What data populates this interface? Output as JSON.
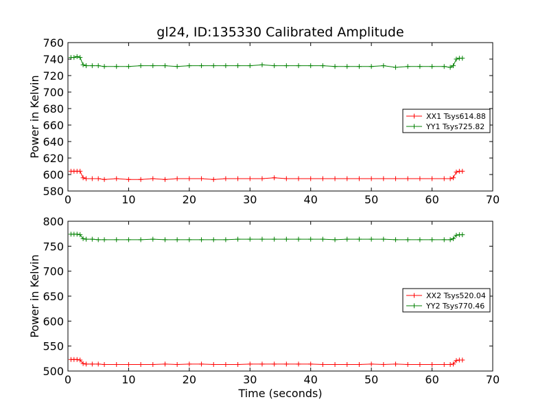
{
  "chart_data": [
    {
      "type": "line",
      "title": "gl24, ID:135330 Calibrated Amplitude",
      "xlabel": "",
      "ylabel": "Power in Kelvin",
      "xlim": [
        0,
        70
      ],
      "ylim": [
        580,
        760
      ],
      "xticks": [
        "0",
        "10",
        "20",
        "30",
        "40",
        "50",
        "60",
        "70"
      ],
      "yticks": [
        "580",
        "600",
        "620",
        "640",
        "660",
        "680",
        "700",
        "720",
        "740",
        "760"
      ],
      "legend_position": "center-right",
      "grid": false,
      "marker": "plus",
      "series": [
        {
          "name": "XX1 Tsys614.88",
          "color": "#ff0000",
          "x": [
            0.5,
            1.0,
            1.5,
            2.0,
            2.5,
            3.0,
            4.0,
            5.0,
            6.0,
            8.0,
            10.0,
            12.0,
            14.0,
            16.0,
            18.0,
            20.0,
            22.0,
            24.0,
            26.0,
            28.0,
            30.0,
            32.0,
            34.0,
            36.0,
            38.0,
            40.0,
            42.0,
            44.0,
            46.0,
            48.0,
            50.0,
            52.0,
            54.0,
            56.0,
            58.0,
            60.0,
            62.0,
            63.0,
            63.5,
            64.0,
            64.5,
            65.0
          ],
          "y": [
            604,
            604,
            604,
            604,
            596,
            595,
            595,
            595,
            594,
            595,
            594,
            594,
            595,
            594,
            595,
            595,
            595,
            594,
            595,
            595,
            595,
            595,
            596,
            595,
            595,
            595,
            595,
            595,
            595,
            595,
            595,
            595,
            595,
            595,
            595,
            595,
            595,
            595,
            596,
            603,
            604,
            604
          ]
        },
        {
          "name": "YY1 Tsys725.82",
          "color": "#008000",
          "x": [
            0.5,
            1.0,
            1.5,
            2.0,
            2.5,
            3.0,
            4.0,
            5.0,
            6.0,
            8.0,
            10.0,
            12.0,
            14.0,
            16.0,
            18.0,
            20.0,
            22.0,
            24.0,
            26.0,
            28.0,
            30.0,
            32.0,
            34.0,
            36.0,
            38.0,
            40.0,
            42.0,
            44.0,
            46.0,
            48.0,
            50.0,
            52.0,
            54.0,
            56.0,
            58.0,
            60.0,
            62.0,
            63.0,
            63.5,
            64.0,
            64.5,
            65.0
          ],
          "y": [
            742,
            742,
            743,
            742,
            733,
            732,
            732,
            732,
            731,
            731,
            731,
            732,
            732,
            732,
            731,
            732,
            732,
            732,
            732,
            732,
            732,
            733,
            732,
            732,
            732,
            732,
            732,
            731,
            731,
            731,
            731,
            732,
            730,
            731,
            731,
            731,
            731,
            730,
            732,
            740,
            741,
            741
          ]
        }
      ]
    },
    {
      "type": "line",
      "title": "",
      "xlabel": "Time (seconds)",
      "ylabel": "Power in Kelvin",
      "xlim": [
        0,
        70
      ],
      "ylim": [
        500,
        800
      ],
      "xticks": [
        "0",
        "10",
        "20",
        "30",
        "40",
        "50",
        "60",
        "70"
      ],
      "yticks": [
        "500",
        "550",
        "600",
        "650",
        "700",
        "750",
        "800"
      ],
      "legend_position": "center-right",
      "grid": false,
      "marker": "plus",
      "series": [
        {
          "name": "XX2 Tsys520.04",
          "color": "#ff0000",
          "x": [
            0.5,
            1.0,
            1.5,
            2.0,
            2.5,
            3.0,
            4.0,
            5.0,
            6.0,
            8.0,
            10.0,
            12.0,
            14.0,
            16.0,
            18.0,
            20.0,
            22.0,
            24.0,
            26.0,
            28.0,
            30.0,
            32.0,
            34.0,
            36.0,
            38.0,
            40.0,
            42.0,
            44.0,
            46.0,
            48.0,
            50.0,
            52.0,
            54.0,
            56.0,
            58.0,
            60.0,
            62.0,
            63.0,
            63.5,
            64.0,
            64.5,
            65.0
          ],
          "y": [
            523,
            523,
            523,
            522,
            515,
            514,
            514,
            514,
            513,
            513,
            513,
            513,
            513,
            514,
            513,
            514,
            514,
            513,
            513,
            513,
            514,
            514,
            514,
            514,
            514,
            514,
            513,
            513,
            513,
            513,
            514,
            513,
            514,
            513,
            513,
            513,
            513,
            513,
            514,
            521,
            522,
            522
          ]
        },
        {
          "name": "YY2 Tsys770.46",
          "color": "#008000",
          "x": [
            0.5,
            1.0,
            1.5,
            2.0,
            2.5,
            3.0,
            4.0,
            5.0,
            6.0,
            8.0,
            10.0,
            12.0,
            14.0,
            16.0,
            18.0,
            20.0,
            22.0,
            24.0,
            26.0,
            28.0,
            30.0,
            32.0,
            34.0,
            36.0,
            38.0,
            40.0,
            42.0,
            44.0,
            46.0,
            48.0,
            50.0,
            52.0,
            54.0,
            56.0,
            58.0,
            60.0,
            62.0,
            63.0,
            63.5,
            64.0,
            64.5,
            65.0
          ],
          "y": [
            774,
            774,
            774,
            773,
            765,
            764,
            764,
            763,
            763,
            763,
            763,
            763,
            764,
            763,
            763,
            763,
            763,
            763,
            763,
            764,
            764,
            764,
            764,
            764,
            764,
            764,
            764,
            763,
            764,
            764,
            764,
            764,
            763,
            763,
            763,
            763,
            763,
            763,
            765,
            772,
            773,
            773
          ]
        }
      ]
    }
  ]
}
